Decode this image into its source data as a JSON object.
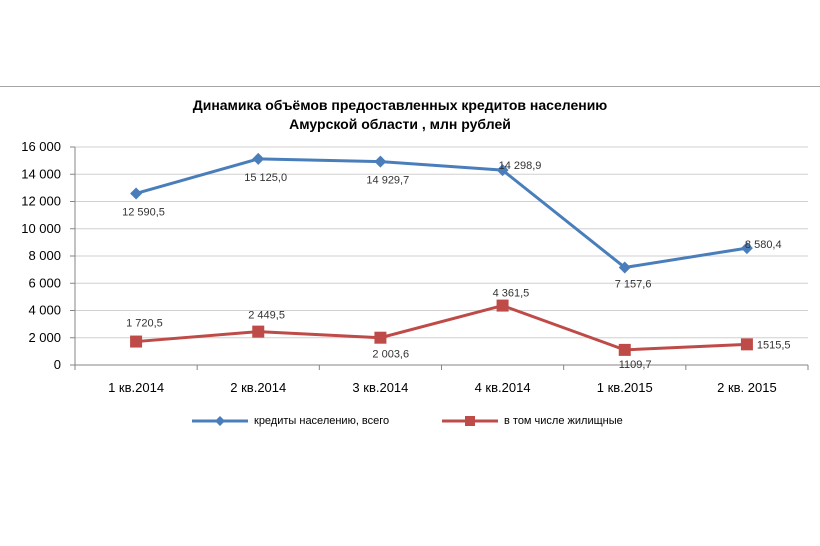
{
  "chart_data": {
    "type": "line",
    "title_line1": "Динамика объёмов предоставленных кредитов населению",
    "title_line2": "Амурской области , млн рублей",
    "categories": [
      "1 кв.2014",
      "2 кв.2014",
      "3 кв.2014",
      "4 кв.2014",
      "1 кв.2015",
      "2 кв. 2015"
    ],
    "ylim": [
      0,
      16000
    ],
    "yticks": [
      0,
      2000,
      4000,
      6000,
      8000,
      10000,
      12000,
      14000,
      16000
    ],
    "ytick_labels": [
      "0",
      "2 000",
      "4 000",
      "6 000",
      "8 000",
      "10 000",
      "12 000",
      "14 000",
      "16 000"
    ],
    "grid": true,
    "legend_position": "bottom",
    "series": [
      {
        "name": "кредиты населению, всего",
        "values": [
          12590.5,
          15125.0,
          14929.7,
          14298.9,
          7157.6,
          8580.4
        ],
        "labels": [
          "12 590,5",
          "15 125,0",
          "14 929,7",
          "14 298,9",
          "7 157,6",
          "8 580,4"
        ],
        "color": "#4a7ebb",
        "marker": "diamond"
      },
      {
        "name": "в том числе жилищные",
        "values": [
          1720.5,
          2449.5,
          2003.6,
          4361.5,
          1109.7,
          1515.5
        ],
        "labels": [
          "1 720,5",
          "2 449,5",
          "2 003,6",
          "4 361,5",
          "1109,7",
          "1515,5"
        ],
        "color": "#be4b48",
        "marker": "square"
      }
    ]
  }
}
